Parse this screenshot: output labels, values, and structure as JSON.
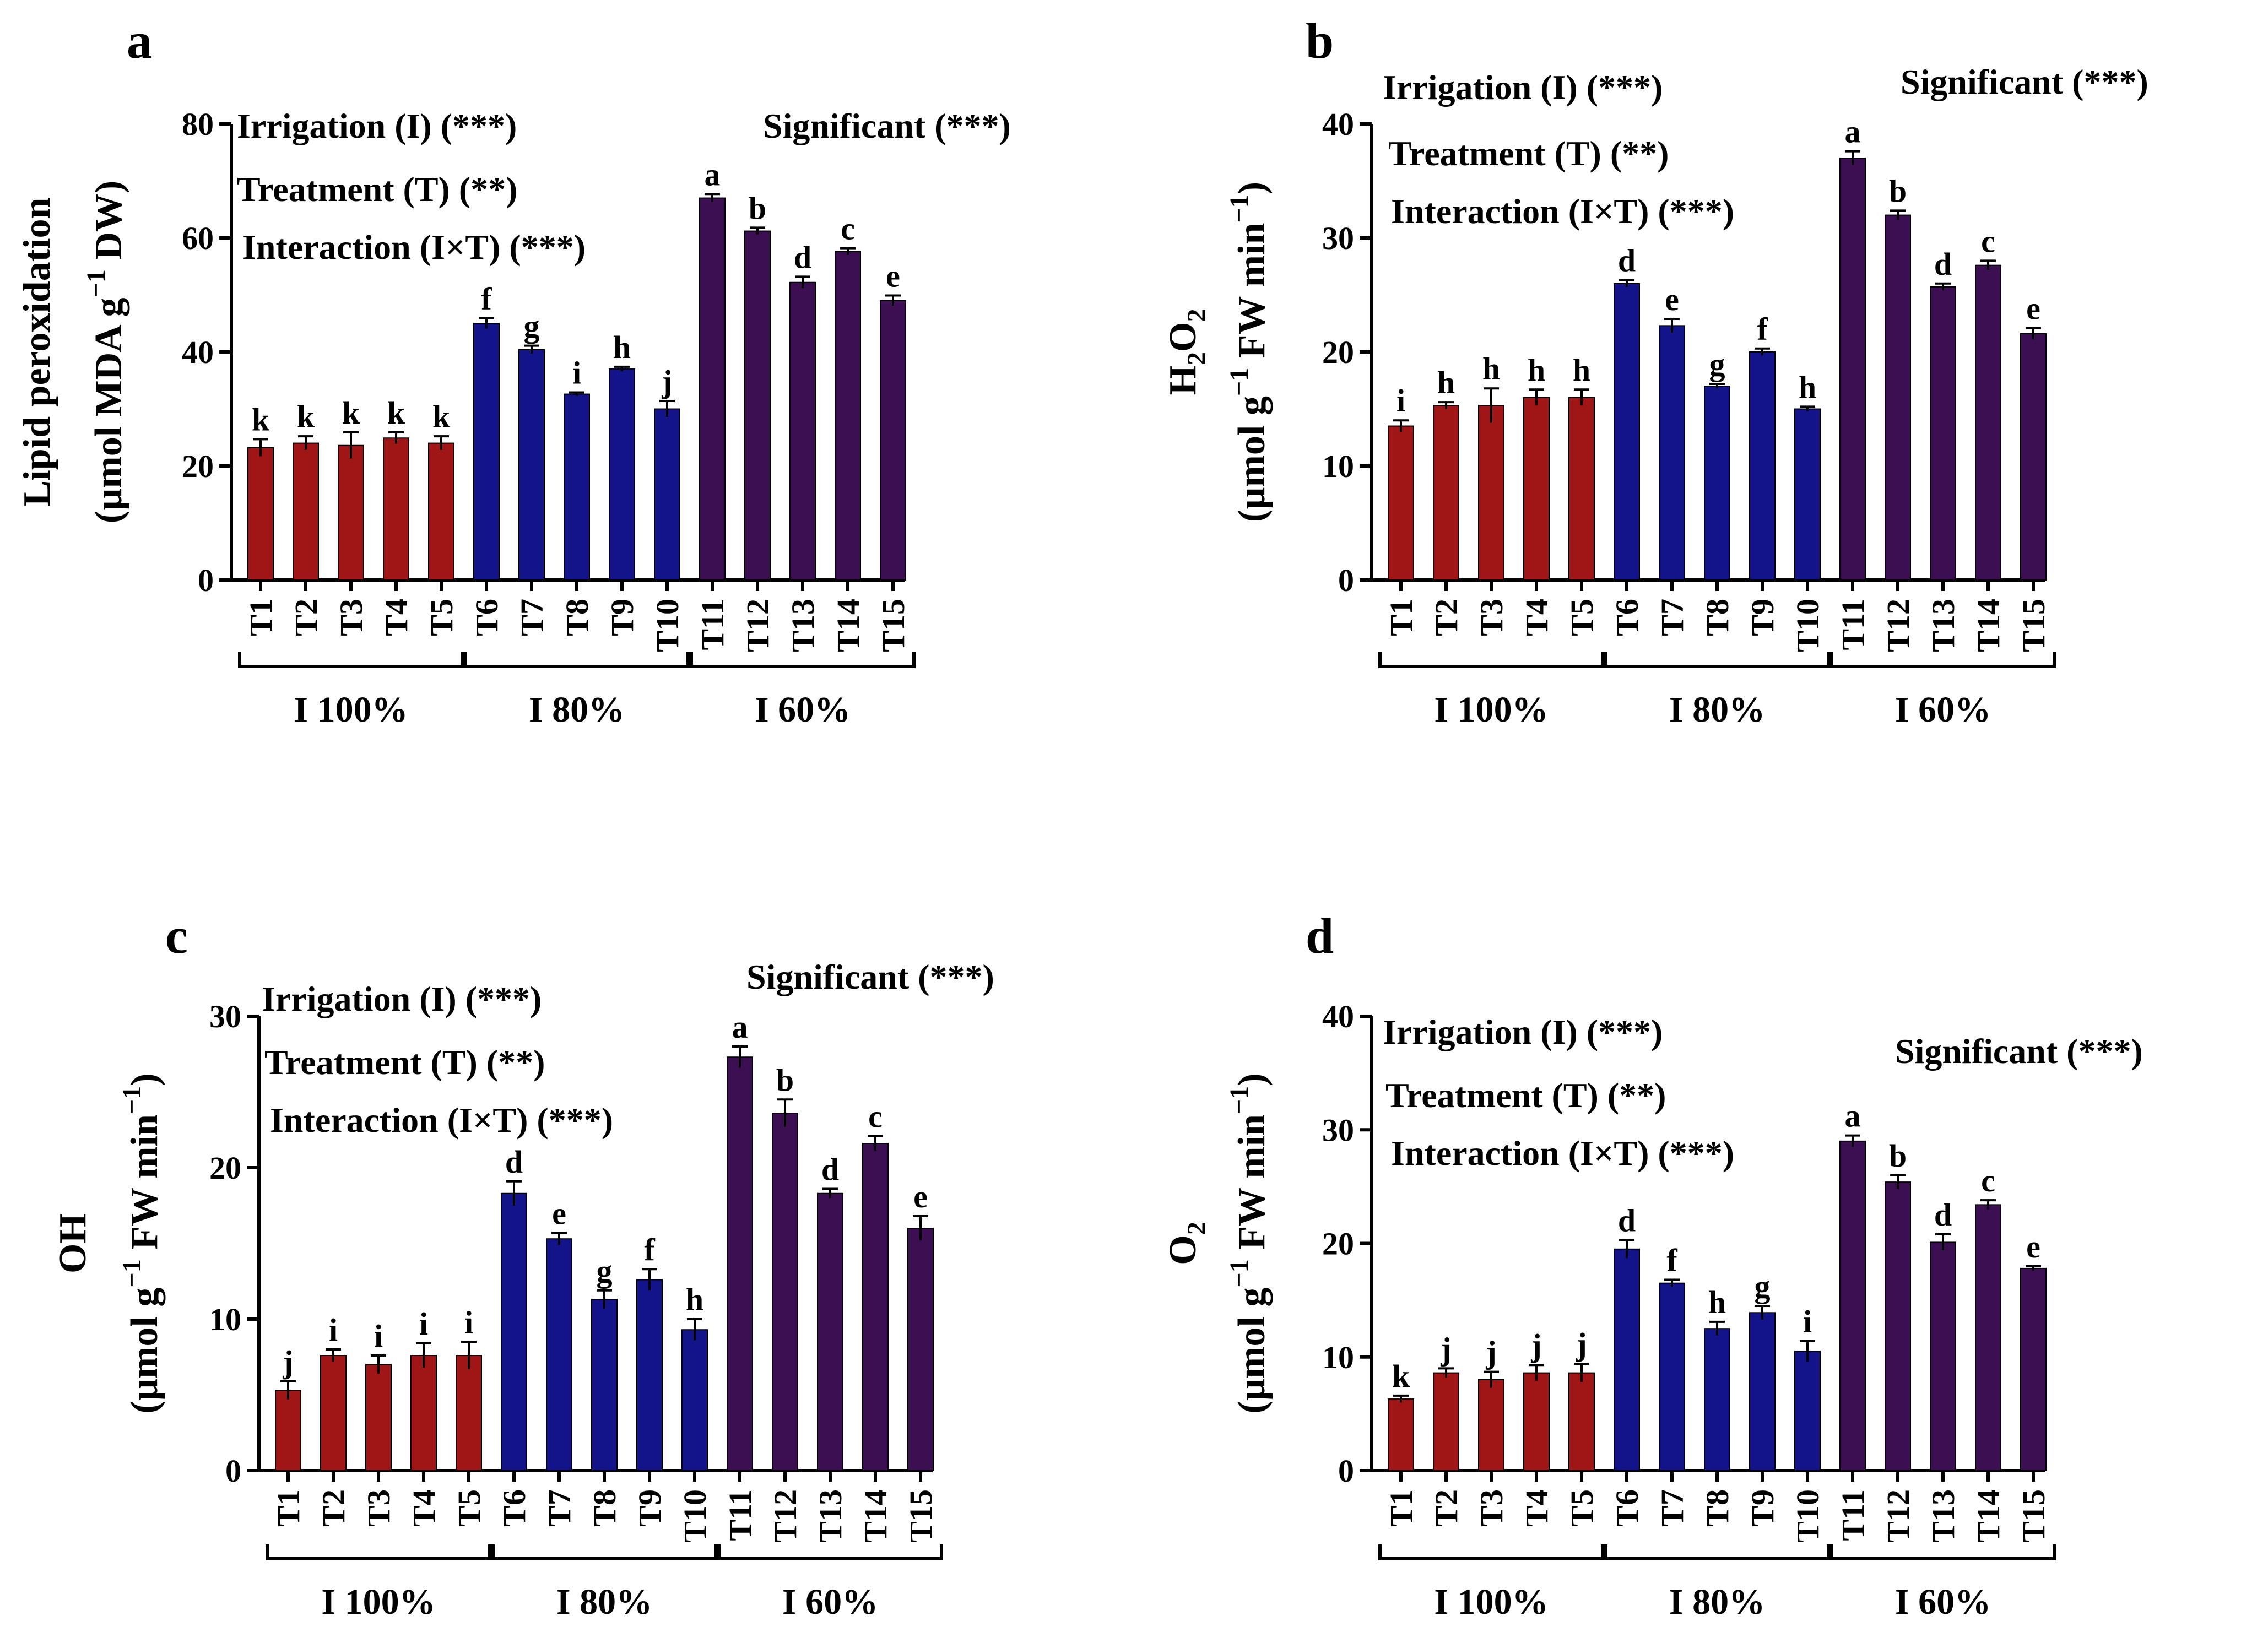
{
  "colors": {
    "I100": "#a01616",
    "I80": "#14148a",
    "I60": "#3c0e52",
    "axis": "#000000"
  },
  "groups": [
    "I 100%",
    "I 80%",
    "I 60%"
  ],
  "chart_data": [
    {
      "id": "a",
      "type": "bar",
      "panel_letter": "a",
      "ylabel": {
        "main": "Lipid peroxidation",
        "unit_pre": "(µmol MDA g",
        "unit_sup": "−1",
        "unit_post": " DW)"
      },
      "ylim": [
        0,
        80
      ],
      "yticks": [
        0,
        20,
        40,
        60,
        80
      ],
      "categories": [
        "T1",
        "T2",
        "T3",
        "T4",
        "T5",
        "T6",
        "T7",
        "T8",
        "T9",
        "T10",
        "T11",
        "T12",
        "T13",
        "T14",
        "T15"
      ],
      "values": [
        23.2,
        24.0,
        23.6,
        24.9,
        24.0,
        45.0,
        40.4,
        32.6,
        37.0,
        30.0,
        67.0,
        61.2,
        52.2,
        57.6,
        49.0
      ],
      "errors": [
        1.5,
        1.2,
        2.3,
        1.0,
        1.2,
        0.9,
        0.7,
        0.3,
        0.4,
        1.4,
        0.7,
        0.6,
        1.0,
        0.6,
        0.9
      ],
      "letters": [
        "k",
        "k",
        "k",
        "k",
        "k",
        "f",
        "g",
        "i",
        "h",
        "j",
        "a",
        "b",
        "d",
        "c",
        "e"
      ],
      "stats": [
        "Irrigation (I) (***)",
        "Treatment (T) (**)",
        "Interaction (I×T) (***)"
      ],
      "significant": "Significant (***)"
    },
    {
      "id": "b",
      "type": "bar",
      "panel_letter": "b",
      "ylabel": {
        "main_pre": "H",
        "main_sub": "2",
        "main_mid": "O",
        "main_sub2": "2",
        "unit_pre": "(µmol g",
        "unit_sup": "−1",
        "unit_post": " FW min",
        "unit_sup2": "−1",
        "unit_end": ")"
      },
      "ylim": [
        0,
        40
      ],
      "yticks": [
        0,
        10,
        20,
        30,
        40
      ],
      "categories": [
        "T1",
        "T2",
        "T3",
        "T4",
        "T5",
        "T6",
        "T7",
        "T8",
        "T9",
        "T10",
        "T11",
        "T12",
        "T13",
        "T14",
        "T15"
      ],
      "values": [
        13.5,
        15.3,
        15.3,
        16.0,
        16.0,
        26.0,
        22.3,
        17.0,
        20.0,
        15.0,
        37.0,
        32.0,
        25.7,
        27.6,
        21.6
      ],
      "errors": [
        0.5,
        0.3,
        1.5,
        0.7,
        0.7,
        0.3,
        0.6,
        0.2,
        0.3,
        0.2,
        0.6,
        0.4,
        0.3,
        0.4,
        0.5
      ],
      "letters": [
        "i",
        "h",
        "h",
        "h",
        "h",
        "d",
        "e",
        "g",
        "f",
        "h",
        "a",
        "b",
        "d",
        "c",
        "e"
      ],
      "stats": [
        "Irrigation (I) (***)",
        "Treatment (T) (**)",
        "Interaction (I×T) (***)"
      ],
      "significant": "Significant (***)"
    },
    {
      "id": "c",
      "type": "bar",
      "panel_letter": "c",
      "ylabel": {
        "main": "OH",
        "unit_pre": "(µmol g",
        "unit_sup": "−1",
        "unit_post": " FW min",
        "unit_sup2": "−1",
        "unit_end": ")"
      },
      "ylim": [
        0,
        30
      ],
      "yticks": [
        0,
        10,
        20,
        30
      ],
      "categories": [
        "T1",
        "T2",
        "T3",
        "T4",
        "T5",
        "T6",
        "T7",
        "T8",
        "T9",
        "T10",
        "T11",
        "T12",
        "T13",
        "T14",
        "T15"
      ],
      "values": [
        5.3,
        7.6,
        7.0,
        7.6,
        7.6,
        18.3,
        15.3,
        11.3,
        12.6,
        9.3,
        27.3,
        23.6,
        18.3,
        21.6,
        16.0
      ],
      "errors": [
        0.6,
        0.4,
        0.6,
        0.8,
        0.9,
        0.8,
        0.4,
        0.6,
        0.7,
        0.7,
        0.7,
        0.9,
        0.3,
        0.5,
        0.8
      ],
      "letters": [
        "j",
        "i",
        "i",
        "i",
        "i",
        "d",
        "e",
        "g",
        "f",
        "h",
        "a",
        "b",
        "d",
        "c",
        "e"
      ],
      "stats": [
        "Irrigation (I) (***)",
        "Treatment (T) (**)",
        "Interaction (I×T) (***)"
      ],
      "significant": "Significant (***)"
    },
    {
      "id": "d",
      "type": "bar",
      "panel_letter": "d",
      "ylabel": {
        "main_pre": "O",
        "main_sub": "2",
        "unit_pre": "(µmol g",
        "unit_sup": "−1",
        "unit_post": " FW min",
        "unit_sup2": "−1",
        "unit_end": ")"
      },
      "ylim": [
        0,
        40
      ],
      "yticks": [
        0,
        10,
        20,
        30,
        40
      ],
      "categories": [
        "T1",
        "T2",
        "T3",
        "T4",
        "T5",
        "T6",
        "T7",
        "T8",
        "T9",
        "T10",
        "T11",
        "T12",
        "T13",
        "T14",
        "T15"
      ],
      "values": [
        6.3,
        8.6,
        8.0,
        8.6,
        8.6,
        19.5,
        16.5,
        12.5,
        13.9,
        10.5,
        29.0,
        25.4,
        20.1,
        23.4,
        17.8
      ],
      "errors": [
        0.3,
        0.4,
        0.7,
        0.7,
        0.8,
        0.8,
        0.3,
        0.6,
        0.6,
        0.9,
        0.5,
        0.6,
        0.7,
        0.4,
        0.2
      ],
      "letters": [
        "k",
        "j",
        "j",
        "j",
        "j",
        "d",
        "f",
        "h",
        "g",
        "i",
        "a",
        "b",
        "d",
        "c",
        "e"
      ],
      "stats": [
        "Irrigation (I) (***)",
        "Treatment (T) (**)",
        "Interaction (I×T) (***)"
      ],
      "significant": "Significant (***)"
    }
  ]
}
